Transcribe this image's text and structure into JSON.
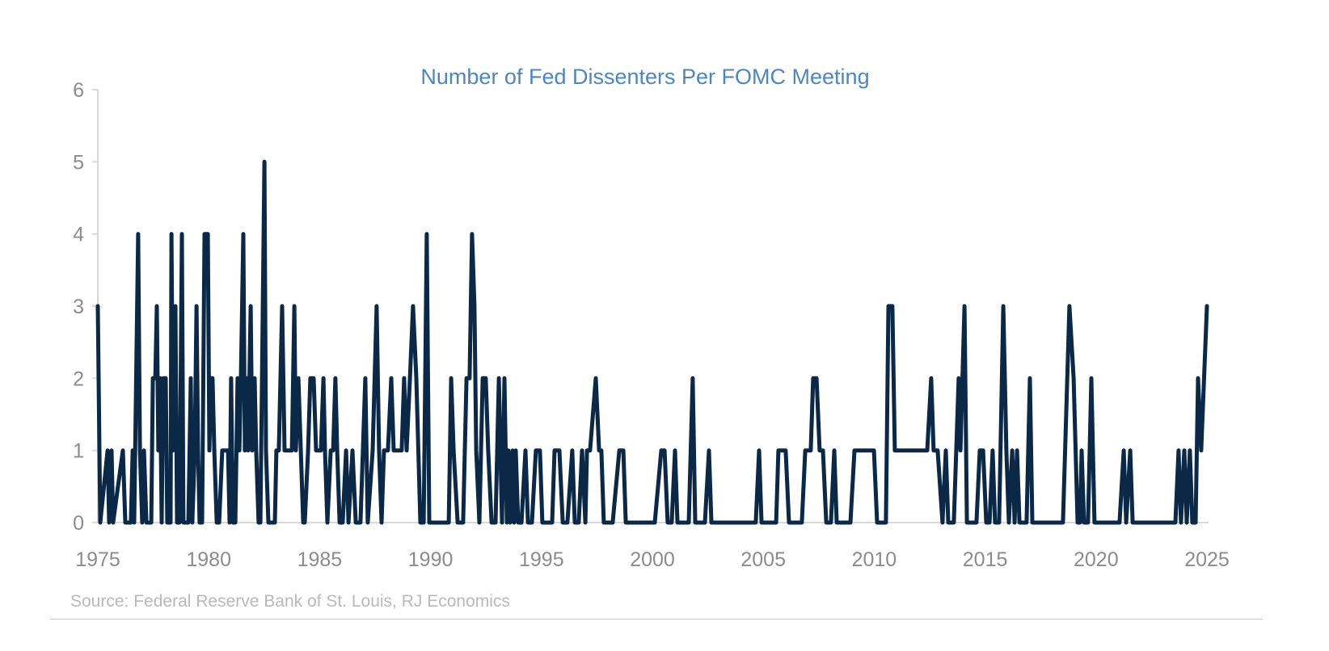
{
  "chart_data": {
    "type": "line",
    "title": "Number of Fed Dissenters Per FOMC Meeting",
    "xlabel": "",
    "ylabel": "",
    "xlim": [
      1975,
      2025
    ],
    "ylim": [
      0,
      6
    ],
    "x_ticks": [
      "1975",
      "1980",
      "1985",
      "1990",
      "1995",
      "2000",
      "2005",
      "2010",
      "2015",
      "2020",
      "2025"
    ],
    "y_ticks": [
      "0",
      "1",
      "2",
      "3",
      "4",
      "5",
      "6"
    ],
    "grid": false,
    "legend": "none",
    "line_color": "#0b2847",
    "series": [
      {
        "points": [
          [
            1975.0,
            3
          ],
          [
            1975.11,
            0
          ],
          [
            1975.44,
            1
          ],
          [
            1975.51,
            0
          ],
          [
            1975.62,
            1
          ],
          [
            1975.69,
            0
          ],
          [
            1976.13,
            1
          ],
          [
            1976.24,
            0
          ],
          [
            1976.49,
            0
          ],
          [
            1976.57,
            1
          ],
          [
            1976.64,
            0
          ],
          [
            1976.82,
            4
          ],
          [
            1976.9,
            1
          ],
          [
            1977.0,
            0
          ],
          [
            1977.08,
            1
          ],
          [
            1977.19,
            0
          ],
          [
            1977.41,
            0
          ],
          [
            1977.48,
            2
          ],
          [
            1977.59,
            2
          ],
          [
            1977.66,
            3
          ],
          [
            1977.73,
            1
          ],
          [
            1977.81,
            2
          ],
          [
            1977.88,
            0
          ],
          [
            1977.95,
            2
          ],
          [
            1978.06,
            2
          ],
          [
            1978.13,
            0
          ],
          [
            1978.28,
            0
          ],
          [
            1978.32,
            4
          ],
          [
            1978.39,
            1
          ],
          [
            1978.5,
            3
          ],
          [
            1978.57,
            0
          ],
          [
            1978.68,
            0
          ],
          [
            1978.79,
            4
          ],
          [
            1978.86,
            0
          ],
          [
            1979.08,
            0
          ],
          [
            1979.19,
            2
          ],
          [
            1979.26,
            0
          ],
          [
            1979.37,
            1
          ],
          [
            1979.45,
            3
          ],
          [
            1979.52,
            1
          ],
          [
            1979.59,
            0
          ],
          [
            1979.7,
            0
          ],
          [
            1979.81,
            4
          ],
          [
            1979.96,
            4
          ],
          [
            1980.03,
            1
          ],
          [
            1980.1,
            2
          ],
          [
            1980.17,
            2
          ],
          [
            1980.25,
            1
          ],
          [
            1980.36,
            0
          ],
          [
            1980.47,
            0
          ],
          [
            1980.61,
            1
          ],
          [
            1980.76,
            1
          ],
          [
            1980.87,
            1
          ],
          [
            1980.94,
            0
          ],
          [
            1981.01,
            2
          ],
          [
            1981.09,
            0
          ],
          [
            1981.2,
            0
          ],
          [
            1981.3,
            2
          ],
          [
            1981.38,
            1
          ],
          [
            1981.45,
            2
          ],
          [
            1981.56,
            4
          ],
          [
            1981.63,
            1
          ],
          [
            1981.71,
            2
          ],
          [
            1981.78,
            1
          ],
          [
            1981.89,
            3
          ],
          [
            1981.96,
            1
          ],
          [
            1982.07,
            2
          ],
          [
            1982.14,
            1
          ],
          [
            1982.25,
            0
          ],
          [
            1982.33,
            0
          ],
          [
            1982.51,
            5
          ],
          [
            1982.58,
            1
          ],
          [
            1982.69,
            0
          ],
          [
            1982.98,
            0
          ],
          [
            1983.05,
            1
          ],
          [
            1983.16,
            1
          ],
          [
            1983.31,
            3
          ],
          [
            1983.42,
            1
          ],
          [
            1983.64,
            1
          ],
          [
            1983.75,
            1
          ],
          [
            1983.86,
            3
          ],
          [
            1983.93,
            1
          ],
          [
            1984.04,
            2
          ],
          [
            1984.15,
            1
          ],
          [
            1984.26,
            0
          ],
          [
            1984.33,
            0
          ],
          [
            1984.48,
            1
          ],
          [
            1984.58,
            2
          ],
          [
            1984.73,
            2
          ],
          [
            1984.84,
            1
          ],
          [
            1985.06,
            1
          ],
          [
            1985.17,
            2
          ],
          [
            1985.24,
            1
          ],
          [
            1985.35,
            0
          ],
          [
            1985.5,
            1
          ],
          [
            1985.61,
            1
          ],
          [
            1985.71,
            2
          ],
          [
            1985.79,
            1
          ],
          [
            1985.9,
            0
          ],
          [
            1986.04,
            0
          ],
          [
            1986.19,
            1
          ],
          [
            1986.3,
            0
          ],
          [
            1986.48,
            1
          ],
          [
            1986.63,
            0
          ],
          [
            1986.84,
            0
          ],
          [
            1987.06,
            2
          ],
          [
            1987.17,
            0
          ],
          [
            1987.39,
            1
          ],
          [
            1987.57,
            3
          ],
          [
            1987.68,
            1
          ],
          [
            1987.79,
            0
          ],
          [
            1987.9,
            1
          ],
          [
            1988.08,
            1
          ],
          [
            1988.23,
            2
          ],
          [
            1988.34,
            1
          ],
          [
            1988.52,
            1
          ],
          [
            1988.7,
            1
          ],
          [
            1988.81,
            2
          ],
          [
            1988.92,
            1
          ],
          [
            1989.07,
            2
          ],
          [
            1989.21,
            3
          ],
          [
            1989.36,
            2
          ],
          [
            1989.54,
            0
          ],
          [
            1989.69,
            0
          ],
          [
            1989.83,
            4
          ],
          [
            1989.94,
            0
          ],
          [
            1990.82,
            0
          ],
          [
            1990.93,
            2
          ],
          [
            1991.04,
            1
          ],
          [
            1991.22,
            0
          ],
          [
            1991.47,
            0
          ],
          [
            1991.62,
            2
          ],
          [
            1991.76,
            2
          ],
          [
            1991.87,
            4
          ],
          [
            1991.98,
            3
          ],
          [
            1992.06,
            1
          ],
          [
            1992.2,
            0
          ],
          [
            1992.35,
            2
          ],
          [
            1992.49,
            2
          ],
          [
            1992.6,
            1
          ],
          [
            1992.75,
            0
          ],
          [
            1992.93,
            0
          ],
          [
            1993.08,
            2
          ],
          [
            1993.15,
            1
          ],
          [
            1993.22,
            0
          ],
          [
            1993.33,
            2
          ],
          [
            1993.44,
            0
          ],
          [
            1993.51,
            1
          ],
          [
            1993.59,
            0
          ],
          [
            1993.7,
            1
          ],
          [
            1993.77,
            0
          ],
          [
            1993.84,
            1
          ],
          [
            1993.95,
            0
          ],
          [
            1994.1,
            0
          ],
          [
            1994.28,
            1
          ],
          [
            1994.39,
            0
          ],
          [
            1994.57,
            0
          ],
          [
            1994.75,
            1
          ],
          [
            1994.93,
            1
          ],
          [
            1995.04,
            0
          ],
          [
            1995.48,
            0
          ],
          [
            1995.59,
            1
          ],
          [
            1995.81,
            1
          ],
          [
            1995.96,
            0
          ],
          [
            1996.17,
            0
          ],
          [
            1996.39,
            1
          ],
          [
            1996.5,
            0
          ],
          [
            1996.68,
            0
          ],
          [
            1996.83,
            1
          ],
          [
            1996.98,
            0
          ],
          [
            1997.05,
            1
          ],
          [
            1997.19,
            1
          ],
          [
            1997.45,
            2
          ],
          [
            1997.6,
            1
          ],
          [
            1997.7,
            1
          ],
          [
            1997.81,
            0
          ],
          [
            1998.21,
            0
          ],
          [
            1998.51,
            1
          ],
          [
            1998.69,
            1
          ],
          [
            1998.8,
            0
          ],
          [
            2000.11,
            0
          ],
          [
            2000.4,
            1
          ],
          [
            2000.55,
            1
          ],
          [
            2000.69,
            0
          ],
          [
            2000.87,
            0
          ],
          [
            2001.02,
            1
          ],
          [
            2001.13,
            0
          ],
          [
            2001.64,
            0
          ],
          [
            2001.82,
            2
          ],
          [
            2001.93,
            0
          ],
          [
            2002.37,
            0
          ],
          [
            2002.55,
            1
          ],
          [
            2002.66,
            0
          ],
          [
            2004.66,
            0
          ],
          [
            2004.81,
            1
          ],
          [
            2004.92,
            0
          ],
          [
            2005.58,
            0
          ],
          [
            2005.68,
            1
          ],
          [
            2006.01,
            1
          ],
          [
            2006.16,
            0
          ],
          [
            2006.74,
            0
          ],
          [
            2006.89,
            1
          ],
          [
            2007.14,
            1
          ],
          [
            2007.25,
            2
          ],
          [
            2007.4,
            2
          ],
          [
            2007.54,
            1
          ],
          [
            2007.69,
            1
          ],
          [
            2007.84,
            0
          ],
          [
            2008.05,
            0
          ],
          [
            2008.2,
            1
          ],
          [
            2008.31,
            0
          ],
          [
            2008.93,
            0
          ],
          [
            2009.11,
            1
          ],
          [
            2009.99,
            1
          ],
          [
            2010.13,
            0
          ],
          [
            2010.53,
            0
          ],
          [
            2010.64,
            3
          ],
          [
            2010.82,
            3
          ],
          [
            2010.93,
            1
          ],
          [
            2012.39,
            1
          ],
          [
            2012.57,
            2
          ],
          [
            2012.68,
            1
          ],
          [
            2012.86,
            1
          ],
          [
            2013.08,
            0
          ],
          [
            2013.23,
            1
          ],
          [
            2013.34,
            0
          ],
          [
            2013.59,
            0
          ],
          [
            2013.81,
            2
          ],
          [
            2013.89,
            1
          ],
          [
            2014.07,
            3
          ],
          [
            2014.18,
            0
          ],
          [
            2014.61,
            0
          ],
          [
            2014.76,
            1
          ],
          [
            2014.91,
            1
          ],
          [
            2015.05,
            0
          ],
          [
            2015.2,
            0
          ],
          [
            2015.34,
            1
          ],
          [
            2015.45,
            0
          ],
          [
            2015.63,
            0
          ],
          [
            2015.82,
            3
          ],
          [
            2015.96,
            1
          ],
          [
            2016.07,
            0
          ],
          [
            2016.22,
            1
          ],
          [
            2016.33,
            0
          ],
          [
            2016.44,
            1
          ],
          [
            2016.55,
            0
          ],
          [
            2016.87,
            0
          ],
          [
            2017.02,
            2
          ],
          [
            2017.13,
            0
          ],
          [
            2018.51,
            0
          ],
          [
            2018.8,
            3
          ],
          [
            2018.99,
            2
          ],
          [
            2019.17,
            0
          ],
          [
            2019.28,
            0
          ],
          [
            2019.35,
            1
          ],
          [
            2019.46,
            0
          ],
          [
            2019.64,
            0
          ],
          [
            2019.79,
            2
          ],
          [
            2019.93,
            0
          ],
          [
            2021.06,
            0
          ],
          [
            2021.25,
            1
          ],
          [
            2021.36,
            0
          ],
          [
            2021.54,
            1
          ],
          [
            2021.65,
            0
          ],
          [
            2023.58,
            0
          ],
          [
            2023.72,
            1
          ],
          [
            2023.83,
            0
          ],
          [
            2023.98,
            1
          ],
          [
            2024.09,
            0
          ],
          [
            2024.23,
            1
          ],
          [
            2024.34,
            0
          ],
          [
            2024.49,
            0
          ],
          [
            2024.6,
            2
          ],
          [
            2024.74,
            1
          ],
          [
            2025.0,
            3
          ]
        ]
      }
    ]
  },
  "source": "Source: Federal Reserve Bank of St. Louis, RJ Economics"
}
